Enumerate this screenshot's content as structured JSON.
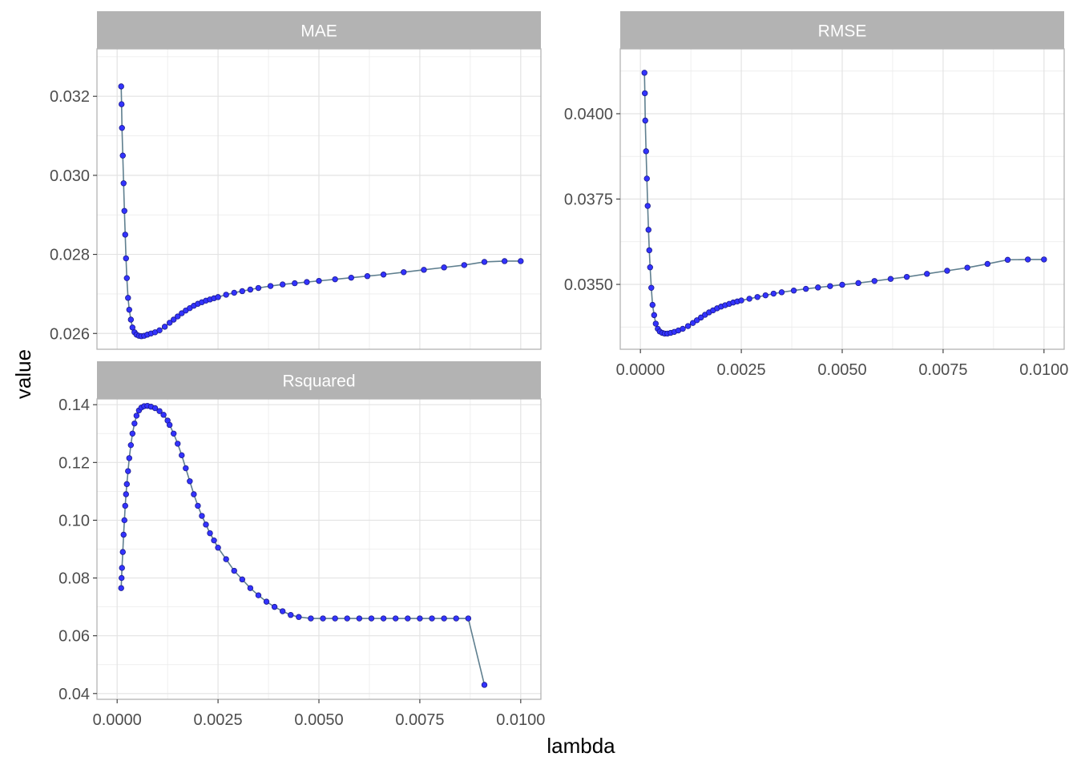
{
  "chart_data": {
    "type": "line",
    "xlabel": "lambda",
    "ylabel": "value",
    "grid": true,
    "colors": {
      "point_fill": "#3333ff",
      "point_stroke": "#1a1a8c",
      "line": "#5f7f8f",
      "strip_fill": "#b3b3b3",
      "grid": "#ebebeb",
      "panel_border": "#b3b3b3"
    },
    "x_ticks": [
      "0.0000",
      "0.0025",
      "0.0050",
      "0.0075",
      "0.0100"
    ],
    "panels": [
      {
        "name": "MAE",
        "xlim": [
          -0.0005,
          0.0105
        ],
        "ylim": [
          0.0256,
          0.0332
        ],
        "y_ticks": [
          "0.026",
          "0.028",
          "0.030",
          "0.032"
        ],
        "x": [
          0.0001,
          0.00011,
          0.00012,
          0.00014,
          0.00016,
          0.00018,
          0.0002,
          0.00022,
          0.00024,
          0.00027,
          0.0003,
          0.00034,
          0.00038,
          0.00043,
          0.00048,
          0.00054,
          0.0006,
          0.00067,
          0.00075,
          0.00084,
          0.00094,
          0.00105,
          0.00118,
          0.0013,
          0.0014,
          0.0015,
          0.0016,
          0.0017,
          0.0018,
          0.0019,
          0.002,
          0.0021,
          0.0022,
          0.0023,
          0.0024,
          0.0025,
          0.0027,
          0.0029,
          0.0031,
          0.0033,
          0.0035,
          0.0038,
          0.0041,
          0.0044,
          0.0047,
          0.005,
          0.0054,
          0.0058,
          0.0062,
          0.0066,
          0.0071,
          0.0076,
          0.0081,
          0.0086,
          0.0091,
          0.0096,
          0.01
        ],
        "y": [
          0.03225,
          0.0318,
          0.0312,
          0.0305,
          0.0298,
          0.0291,
          0.0285,
          0.0279,
          0.0274,
          0.0269,
          0.0266,
          0.02635,
          0.02615,
          0.02603,
          0.02597,
          0.02594,
          0.02593,
          0.02594,
          0.02597,
          0.026,
          0.02603,
          0.02608,
          0.02617,
          0.02627,
          0.02635,
          0.02643,
          0.02651,
          0.02658,
          0.02664,
          0.0267,
          0.02675,
          0.02679,
          0.02683,
          0.02686,
          0.02689,
          0.02692,
          0.02698,
          0.02703,
          0.02707,
          0.02711,
          0.02715,
          0.0272,
          0.02724,
          0.02727,
          0.0273,
          0.02733,
          0.02737,
          0.02741,
          0.02745,
          0.02749,
          0.02755,
          0.02761,
          0.02767,
          0.02773,
          0.02781,
          0.02783,
          0.02783
        ]
      },
      {
        "name": "RMSE",
        "xlim": [
          -0.0005,
          0.0105
        ],
        "ylim": [
          0.0331,
          0.0419
        ],
        "y_ticks": [
          "0.0350",
          "0.0375",
          "0.0400"
        ],
        "x": [
          0.0001,
          0.00011,
          0.00012,
          0.00014,
          0.00016,
          0.00018,
          0.0002,
          0.00022,
          0.00024,
          0.00027,
          0.0003,
          0.00034,
          0.00038,
          0.00043,
          0.00048,
          0.00054,
          0.0006,
          0.00067,
          0.00075,
          0.00084,
          0.00094,
          0.00105,
          0.00118,
          0.0013,
          0.0014,
          0.0015,
          0.0016,
          0.0017,
          0.0018,
          0.0019,
          0.002,
          0.0021,
          0.0022,
          0.0023,
          0.0024,
          0.0025,
          0.0027,
          0.0029,
          0.0031,
          0.0033,
          0.0035,
          0.0038,
          0.0041,
          0.0044,
          0.0047,
          0.005,
          0.0054,
          0.0058,
          0.0062,
          0.0066,
          0.0071,
          0.0076,
          0.0081,
          0.0086,
          0.0091,
          0.0096,
          0.01
        ],
        "y": [
          0.0412,
          0.0406,
          0.0398,
          0.0389,
          0.0381,
          0.0373,
          0.0366,
          0.036,
          0.0355,
          0.0349,
          0.0344,
          0.0341,
          0.03385,
          0.0337,
          0.03362,
          0.03358,
          0.03356,
          0.03356,
          0.03358,
          0.03361,
          0.03365,
          0.0337,
          0.03378,
          0.03387,
          0.03395,
          0.03403,
          0.03411,
          0.03418,
          0.03424,
          0.0343,
          0.03435,
          0.03439,
          0.03443,
          0.03447,
          0.0345,
          0.03453,
          0.03458,
          0.03463,
          0.03468,
          0.03473,
          0.03477,
          0.03482,
          0.03487,
          0.03491,
          0.03495,
          0.03499,
          0.03504,
          0.0351,
          0.03516,
          0.03522,
          0.03531,
          0.0354,
          0.03549,
          0.0356,
          0.03572,
          0.03573,
          0.03573
        ]
      },
      {
        "name": "Rsquared",
        "xlim": [
          -0.0005,
          0.0105
        ],
        "ylim": [
          0.038,
          0.142
        ],
        "y_ticks": [
          "0.04",
          "0.06",
          "0.08",
          "0.10",
          "0.12",
          "0.14"
        ],
        "x": [
          0.0001,
          0.00011,
          0.00012,
          0.00014,
          0.00016,
          0.00018,
          0.0002,
          0.00022,
          0.00024,
          0.00027,
          0.0003,
          0.00034,
          0.00038,
          0.00043,
          0.00048,
          0.00054,
          0.0006,
          0.00067,
          0.00075,
          0.00084,
          0.00094,
          0.00105,
          0.00115,
          0.00125,
          0.0013,
          0.0014,
          0.0015,
          0.0016,
          0.0017,
          0.0018,
          0.0019,
          0.002,
          0.0021,
          0.0022,
          0.0023,
          0.0024,
          0.0025,
          0.0027,
          0.0029,
          0.0031,
          0.0033,
          0.0035,
          0.0037,
          0.0039,
          0.0041,
          0.0043,
          0.0045,
          0.0048,
          0.0051,
          0.0054,
          0.0057,
          0.006,
          0.0063,
          0.0066,
          0.0069,
          0.0072,
          0.0075,
          0.0078,
          0.0081,
          0.0084,
          0.0087,
          0.0091
        ],
        "y": [
          0.0765,
          0.08,
          0.0835,
          0.089,
          0.095,
          0.1,
          0.105,
          0.109,
          0.1125,
          0.117,
          0.1215,
          0.126,
          0.13,
          0.1335,
          0.1362,
          0.138,
          0.139,
          0.1395,
          0.1396,
          0.1393,
          0.1388,
          0.1378,
          0.1365,
          0.1345,
          0.133,
          0.13,
          0.1265,
          0.1225,
          0.118,
          0.1135,
          0.109,
          0.105,
          0.1015,
          0.0985,
          0.0955,
          0.093,
          0.0905,
          0.0865,
          0.0825,
          0.0795,
          0.0765,
          0.074,
          0.0718,
          0.07,
          0.0685,
          0.0672,
          0.0665,
          0.066,
          0.066,
          0.066,
          0.066,
          0.066,
          0.066,
          0.066,
          0.066,
          0.066,
          0.066,
          0.066,
          0.066,
          0.066,
          0.066,
          0.043
        ]
      }
    ]
  }
}
